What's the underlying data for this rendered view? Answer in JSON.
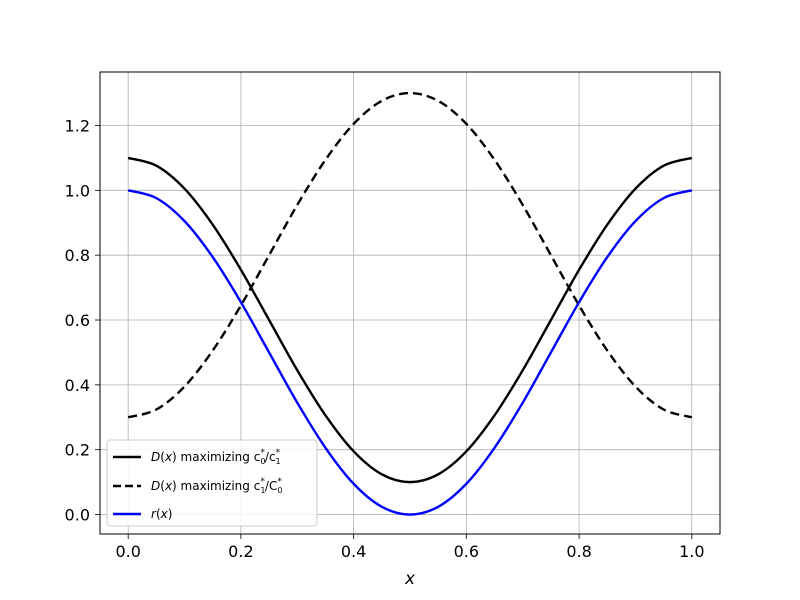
{
  "chart_data": {
    "type": "line",
    "title": "",
    "xlabel": "x",
    "ylabel": "",
    "xlim": [
      -0.05,
      1.05
    ],
    "ylim": [
      -0.06,
      1.365
    ],
    "grid": true,
    "legend_position": "lower-left",
    "x_ticks": [
      0.0,
      0.2,
      0.4,
      0.6,
      0.8,
      1.0
    ],
    "x_tick_labels": [
      "0.0",
      "0.2",
      "0.4",
      "0.6",
      "0.8",
      "1.0"
    ],
    "y_ticks": [
      0.0,
      0.2,
      0.4,
      0.6,
      0.8,
      1.0,
      1.2
    ],
    "y_tick_labels": [
      "0.0",
      "0.2",
      "0.4",
      "0.6",
      "0.8",
      "1.0",
      "1.2"
    ],
    "x": [
      0.0,
      0.05,
      0.1,
      0.15,
      0.2,
      0.25,
      0.3,
      0.35,
      0.4,
      0.45,
      0.5,
      0.55,
      0.6,
      0.65,
      0.7,
      0.75,
      0.8,
      0.85,
      0.9,
      0.95,
      1.0
    ],
    "series": [
      {
        "legend_parts": [
          "D",
          "(",
          "x",
          ") maximizing c",
          "0",
          "*",
          "/c",
          "1",
          "*"
        ],
        "color": "#000000",
        "dash": "solid",
        "values": [
          1.1,
          1.076,
          1.005,
          0.894,
          0.755,
          0.6,
          0.445,
          0.306,
          0.195,
          0.124,
          0.1,
          0.124,
          0.195,
          0.306,
          0.445,
          0.6,
          0.755,
          0.894,
          1.005,
          1.076,
          1.1
        ]
      },
      {
        "legend_parts": [
          "D",
          "(",
          "x",
          ") maximizing c",
          "1",
          "*",
          "/C",
          "0",
          "*"
        ],
        "color": "#000000",
        "dash": "dashed",
        "values": [
          0.3,
          0.324,
          0.395,
          0.506,
          0.645,
          0.8,
          0.955,
          1.094,
          1.205,
          1.276,
          1.3,
          1.276,
          1.205,
          1.094,
          0.955,
          0.8,
          0.645,
          0.506,
          0.395,
          0.324,
          0.3
        ]
      },
      {
        "legend_parts": [
          "r",
          "(",
          "x",
          ")",
          "",
          "",
          "",
          "",
          ""
        ],
        "color": "#0000ff",
        "dash": "solid",
        "values": [
          1.0,
          0.976,
          0.905,
          0.794,
          0.655,
          0.5,
          0.345,
          0.206,
          0.095,
          0.024,
          0.0,
          0.024,
          0.095,
          0.206,
          0.345,
          0.5,
          0.655,
          0.794,
          0.905,
          0.976,
          1.0
        ]
      }
    ]
  }
}
